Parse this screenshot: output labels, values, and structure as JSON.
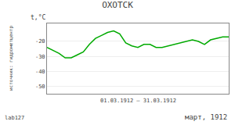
{
  "chart_data": {
    "type": "line",
    "title": "ОХОТСК",
    "ylabel": "t,°C",
    "xlabel": "01.03.1912 – 31.03.1912",
    "annotations": [
      "март, 1912",
      "источник: гидрометцентр",
      "lab127"
    ],
    "x": [
      1,
      2,
      3,
      4,
      5,
      6,
      7,
      8,
      9,
      10,
      11,
      12,
      13,
      14,
      15,
      16,
      17,
      18,
      19,
      20,
      21,
      22,
      23,
      24,
      25,
      26,
      27,
      28,
      29,
      30,
      31
    ],
    "values": [
      -24,
      -26,
      -28,
      -31,
      -31,
      -29,
      -27,
      -22,
      -18,
      -16,
      -14,
      -13,
      -15,
      -21,
      -23,
      -24,
      -22,
      -22,
      -24,
      -24,
      -23,
      -22,
      -21,
      -20,
      -19,
      -20,
      -22,
      -19,
      -18,
      -17,
      -17
    ],
    "color": "#00aa00",
    "xlim": [
      1,
      31
    ],
    "ylim": [
      -55,
      -8
    ],
    "yticks": [
      -50,
      -40,
      -30,
      -20
    ],
    "grid": true,
    "tick_labels": "y"
  }
}
